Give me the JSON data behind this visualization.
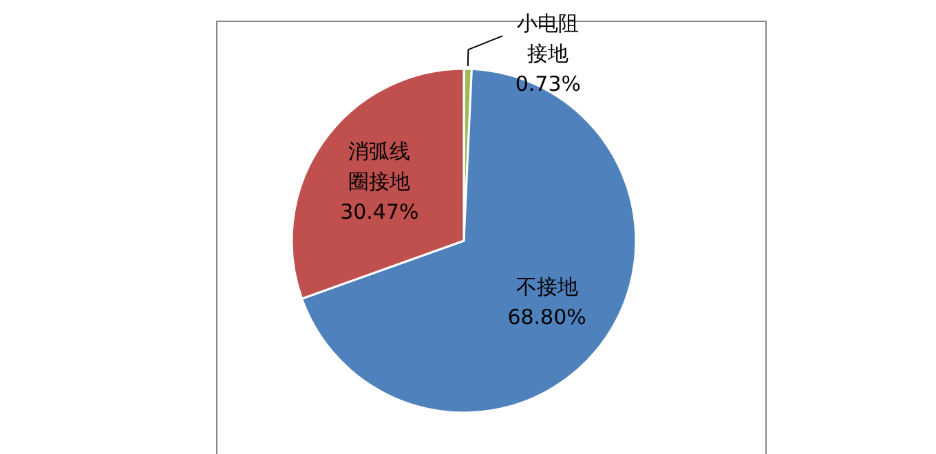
{
  "chart_data": {
    "type": "pie",
    "categories": [
      "小电阻接地",
      "不接地",
      "消弧线圈接地"
    ],
    "values": [
      0.73,
      68.8,
      30.47
    ],
    "colors": [
      "#9bbb59",
      "#4f81bd",
      "#c0504d"
    ],
    "value_labels": [
      "0.73%",
      "68.80%",
      "30.47%"
    ]
  }
}
